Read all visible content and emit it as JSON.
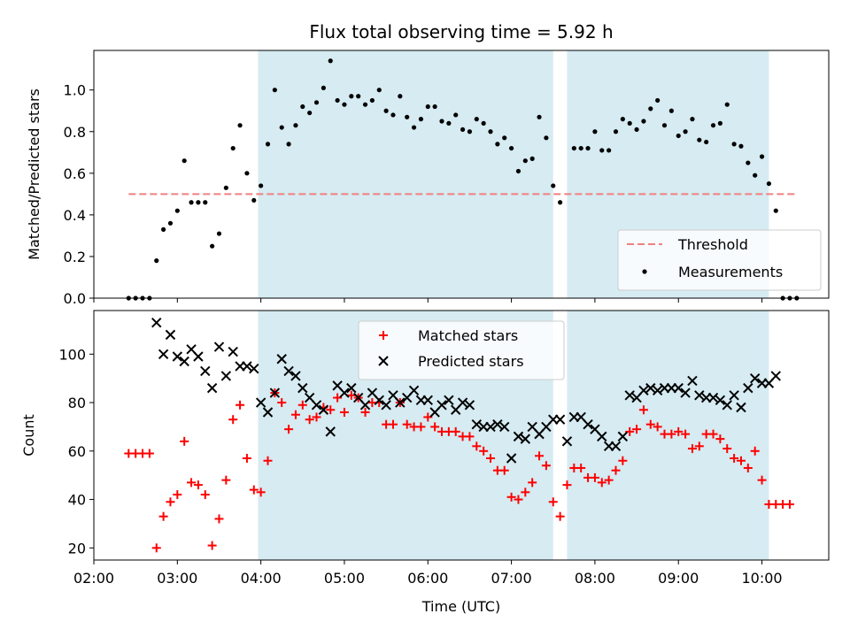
{
  "chart_data": {
    "type": "scatter",
    "title": "Flux total observing time = 5.92 h",
    "xlabel": "Time (UTC)",
    "x_ticks": [
      "02:00",
      "03:00",
      "04:00",
      "05:00",
      "06:00",
      "07:00",
      "08:00",
      "09:00",
      "10:00"
    ],
    "xlim": [
      "02:00",
      "10:48"
    ],
    "shaded_intervals": [
      [
        "03:58",
        "07:30"
      ],
      [
        "07:40",
        "10:05"
      ]
    ],
    "shade_color": "#add8e6",
    "top": {
      "ylabel": "Matched/Predicted stars",
      "ylim": [
        0,
        1.19
      ],
      "y_ticks": [
        0.0,
        0.2,
        0.4,
        0.6,
        0.8,
        1.0
      ],
      "threshold": {
        "name": "Threshold",
        "value": 0.5,
        "from": "02:25",
        "to": "10:25",
        "color": "#f08080"
      },
      "measurements": {
        "name": "Measurements",
        "color": "#000000",
        "points": [
          [
            "02:25",
            0.0
          ],
          [
            "02:30",
            0.0
          ],
          [
            "02:35",
            0.0
          ],
          [
            "02:40",
            0.0
          ],
          [
            "02:45",
            0.18
          ],
          [
            "02:50",
            0.33
          ],
          [
            "02:55",
            0.36
          ],
          [
            "03:00",
            0.42
          ],
          [
            "03:05",
            0.66
          ],
          [
            "03:10",
            0.46
          ],
          [
            "03:15",
            0.46
          ],
          [
            "03:20",
            0.46
          ],
          [
            "03:25",
            0.25
          ],
          [
            "03:30",
            0.31
          ],
          [
            "03:35",
            0.53
          ],
          [
            "03:40",
            0.72
          ],
          [
            "03:45",
            0.83
          ],
          [
            "03:50",
            0.6
          ],
          [
            "03:55",
            0.47
          ],
          [
            "04:00",
            0.54
          ],
          [
            "04:05",
            0.74
          ],
          [
            "04:10",
            1.0
          ],
          [
            "04:15",
            0.82
          ],
          [
            "04:20",
            0.74
          ],
          [
            "04:25",
            0.83
          ],
          [
            "04:30",
            0.92
          ],
          [
            "04:35",
            0.89
          ],
          [
            "04:40",
            0.94
          ],
          [
            "04:45",
            1.01
          ],
          [
            "04:50",
            1.14
          ],
          [
            "04:55",
            0.95
          ],
          [
            "05:00",
            0.93
          ],
          [
            "05:05",
            0.97
          ],
          [
            "05:10",
            0.97
          ],
          [
            "05:15",
            0.93
          ],
          [
            "05:20",
            0.95
          ],
          [
            "05:25",
            1.0
          ],
          [
            "05:30",
            0.9
          ],
          [
            "05:35",
            0.88
          ],
          [
            "05:40",
            0.97
          ],
          [
            "05:45",
            0.87
          ],
          [
            "05:50",
            0.82
          ],
          [
            "05:55",
            0.86
          ],
          [
            "06:00",
            0.92
          ],
          [
            "06:05",
            0.92
          ],
          [
            "06:10",
            0.85
          ],
          [
            "06:15",
            0.84
          ],
          [
            "06:20",
            0.88
          ],
          [
            "06:25",
            0.81
          ],
          [
            "06:30",
            0.8
          ],
          [
            "06:35",
            0.86
          ],
          [
            "06:40",
            0.84
          ],
          [
            "06:45",
            0.8
          ],
          [
            "06:50",
            0.74
          ],
          [
            "06:55",
            0.77
          ],
          [
            "07:00",
            0.72
          ],
          [
            "07:05",
            0.61
          ],
          [
            "07:10",
            0.66
          ],
          [
            "07:15",
            0.67
          ],
          [
            "07:20",
            0.87
          ],
          [
            "07:25",
            0.77
          ],
          [
            "07:30",
            0.54
          ],
          [
            "07:35",
            0.46
          ],
          [
            "07:45",
            0.72
          ],
          [
            "07:50",
            0.72
          ],
          [
            "07:55",
            0.72
          ],
          [
            "08:00",
            0.8
          ],
          [
            "08:05",
            0.71
          ],
          [
            "08:10",
            0.71
          ],
          [
            "08:15",
            0.8
          ],
          [
            "08:20",
            0.86
          ],
          [
            "08:25",
            0.84
          ],
          [
            "08:30",
            0.81
          ],
          [
            "08:35",
            0.85
          ],
          [
            "08:40",
            0.91
          ],
          [
            "08:45",
            0.95
          ],
          [
            "08:50",
            0.83
          ],
          [
            "08:55",
            0.9
          ],
          [
            "09:00",
            0.78
          ],
          [
            "09:05",
            0.8
          ],
          [
            "09:10",
            0.86
          ],
          [
            "09:15",
            0.76
          ],
          [
            "09:20",
            0.75
          ],
          [
            "09:25",
            0.83
          ],
          [
            "09:30",
            0.84
          ],
          [
            "09:35",
            0.93
          ],
          [
            "09:40",
            0.74
          ],
          [
            "09:45",
            0.73
          ],
          [
            "09:50",
            0.65
          ],
          [
            "09:55",
            0.59
          ],
          [
            "10:00",
            0.68
          ],
          [
            "10:05",
            0.55
          ],
          [
            "10:10",
            0.42
          ],
          [
            "10:15",
            0.0
          ],
          [
            "10:20",
            0.0
          ],
          [
            "10:25",
            0.0
          ]
        ]
      },
      "legend_position": "lower-right"
    },
    "bottom": {
      "ylabel": "Count",
      "ylim": [
        15,
        118
      ],
      "y_ticks": [
        20,
        40,
        60,
        80,
        100
      ],
      "matched": {
        "name": "Matched stars",
        "color": "#ff0000",
        "points": [
          [
            "02:25",
            59
          ],
          [
            "02:30",
            59
          ],
          [
            "02:35",
            59
          ],
          [
            "02:40",
            59
          ],
          [
            "02:45",
            20
          ],
          [
            "02:50",
            33
          ],
          [
            "02:55",
            39
          ],
          [
            "03:00",
            42
          ],
          [
            "03:05",
            64
          ],
          [
            "03:10",
            47
          ],
          [
            "03:15",
            46
          ],
          [
            "03:20",
            42
          ],
          [
            "03:25",
            21
          ],
          [
            "03:30",
            32
          ],
          [
            "03:35",
            48
          ],
          [
            "03:40",
            73
          ],
          [
            "03:45",
            79
          ],
          [
            "03:50",
            57
          ],
          [
            "03:55",
            44
          ],
          [
            "04:00",
            43
          ],
          [
            "04:05",
            56
          ],
          [
            "04:10",
            84
          ],
          [
            "04:15",
            80
          ],
          [
            "04:20",
            69
          ],
          [
            "04:25",
            75
          ],
          [
            "04:30",
            79
          ],
          [
            "04:35",
            73
          ],
          [
            "04:40",
            74
          ],
          [
            "04:45",
            78
          ],
          [
            "04:50",
            77
          ],
          [
            "04:55",
            82
          ],
          [
            "05:00",
            76
          ],
          [
            "05:05",
            83
          ],
          [
            "05:10",
            82
          ],
          [
            "05:15",
            76
          ],
          [
            "05:20",
            80
          ],
          [
            "05:25",
            80
          ],
          [
            "05:30",
            71
          ],
          [
            "05:35",
            71
          ],
          [
            "05:40",
            80
          ],
          [
            "05:45",
            71
          ],
          [
            "05:50",
            70
          ],
          [
            "05:55",
            70
          ],
          [
            "06:00",
            74
          ],
          [
            "06:05",
            70
          ],
          [
            "06:10",
            68
          ],
          [
            "06:15",
            68
          ],
          [
            "06:20",
            68
          ],
          [
            "06:25",
            66
          ],
          [
            "06:30",
            66
          ],
          [
            "06:35",
            62
          ],
          [
            "06:40",
            60
          ],
          [
            "06:45",
            57
          ],
          [
            "06:50",
            52
          ],
          [
            "06:55",
            52
          ],
          [
            "07:00",
            41
          ],
          [
            "07:05",
            40
          ],
          [
            "07:10",
            43
          ],
          [
            "07:15",
            47
          ],
          [
            "07:20",
            58
          ],
          [
            "07:25",
            54
          ],
          [
            "07:30",
            39
          ],
          [
            "07:35",
            33
          ],
          [
            "07:40",
            46
          ],
          [
            "07:45",
            53
          ],
          [
            "07:50",
            53
          ],
          [
            "07:55",
            49
          ],
          [
            "08:00",
            49
          ],
          [
            "08:05",
            47
          ],
          [
            "08:10",
            48
          ],
          [
            "08:15",
            52
          ],
          [
            "08:20",
            56
          ],
          [
            "08:25",
            68
          ],
          [
            "08:30",
            69
          ],
          [
            "08:35",
            77
          ],
          [
            "08:40",
            71
          ],
          [
            "08:45",
            70
          ],
          [
            "08:50",
            67
          ],
          [
            "08:55",
            67
          ],
          [
            "09:00",
            68
          ],
          [
            "09:05",
            67
          ],
          [
            "09:10",
            61
          ],
          [
            "09:15",
            62
          ],
          [
            "09:20",
            67
          ],
          [
            "09:25",
            67
          ],
          [
            "09:30",
            65
          ],
          [
            "09:35",
            61
          ],
          [
            "09:40",
            57
          ],
          [
            "09:45",
            56
          ],
          [
            "09:50",
            53
          ],
          [
            "09:55",
            60
          ],
          [
            "10:00",
            48
          ],
          [
            "10:05",
            38
          ],
          [
            "10:10",
            38
          ],
          [
            "10:15",
            38
          ],
          [
            "10:20",
            38
          ]
        ]
      },
      "predicted": {
        "name": "Predicted stars",
        "color": "#000000",
        "points": [
          [
            "02:45",
            113
          ],
          [
            "02:50",
            100
          ],
          [
            "02:55",
            108
          ],
          [
            "03:00",
            99
          ],
          [
            "03:05",
            97
          ],
          [
            "03:10",
            102
          ],
          [
            "03:15",
            99
          ],
          [
            "03:20",
            93
          ],
          [
            "03:25",
            86
          ],
          [
            "03:30",
            103
          ],
          [
            "03:35",
            91
          ],
          [
            "03:40",
            101
          ],
          [
            "03:45",
            95
          ],
          [
            "03:50",
            95
          ],
          [
            "03:55",
            94
          ],
          [
            "04:00",
            80
          ],
          [
            "04:05",
            76
          ],
          [
            "04:10",
            84
          ],
          [
            "04:15",
            98
          ],
          [
            "04:20",
            93
          ],
          [
            "04:25",
            91
          ],
          [
            "04:30",
            86
          ],
          [
            "04:35",
            82
          ],
          [
            "04:40",
            79
          ],
          [
            "04:45",
            77
          ],
          [
            "04:50",
            68
          ],
          [
            "04:55",
            87
          ],
          [
            "05:00",
            84
          ],
          [
            "05:05",
            86
          ],
          [
            "05:10",
            82
          ],
          [
            "05:15",
            79
          ],
          [
            "05:20",
            84
          ],
          [
            "05:25",
            81
          ],
          [
            "05:30",
            79
          ],
          [
            "05:35",
            83
          ],
          [
            "05:40",
            80
          ],
          [
            "05:45",
            82
          ],
          [
            "05:50",
            85
          ],
          [
            "05:55",
            81
          ],
          [
            "06:00",
            81
          ],
          [
            "06:05",
            76
          ],
          [
            "06:10",
            79
          ],
          [
            "06:15",
            81
          ],
          [
            "06:20",
            77
          ],
          [
            "06:25",
            80
          ],
          [
            "06:30",
            79
          ],
          [
            "06:35",
            71
          ],
          [
            "06:40",
            70
          ],
          [
            "06:45",
            70
          ],
          [
            "06:50",
            71
          ],
          [
            "06:55",
            70
          ],
          [
            "07:00",
            57
          ],
          [
            "07:05",
            66
          ],
          [
            "07:10",
            65
          ],
          [
            "07:15",
            70
          ],
          [
            "07:20",
            67
          ],
          [
            "07:25",
            70
          ],
          [
            "07:30",
            73
          ],
          [
            "07:35",
            73
          ],
          [
            "07:40",
            64
          ],
          [
            "07:45",
            74
          ],
          [
            "07:50",
            74
          ],
          [
            "07:55",
            71
          ],
          [
            "08:00",
            69
          ],
          [
            "08:05",
            66
          ],
          [
            "08:10",
            62
          ],
          [
            "08:15",
            62
          ],
          [
            "08:20",
            66
          ],
          [
            "08:25",
            83
          ],
          [
            "08:30",
            82
          ],
          [
            "08:35",
            85
          ],
          [
            "08:40",
            86
          ],
          [
            "08:45",
            85
          ],
          [
            "08:50",
            86
          ],
          [
            "08:55",
            86
          ],
          [
            "09:00",
            86
          ],
          [
            "09:05",
            84
          ],
          [
            "09:10",
            89
          ],
          [
            "09:15",
            83
          ],
          [
            "09:20",
            82
          ],
          [
            "09:25",
            82
          ],
          [
            "09:30",
            81
          ],
          [
            "09:35",
            79
          ],
          [
            "09:40",
            83
          ],
          [
            "09:45",
            78
          ],
          [
            "09:50",
            86
          ],
          [
            "09:55",
            90
          ],
          [
            "10:00",
            88
          ],
          [
            "10:05",
            88
          ],
          [
            "10:10",
            91
          ]
        ]
      },
      "legend_position": "top-center"
    }
  }
}
